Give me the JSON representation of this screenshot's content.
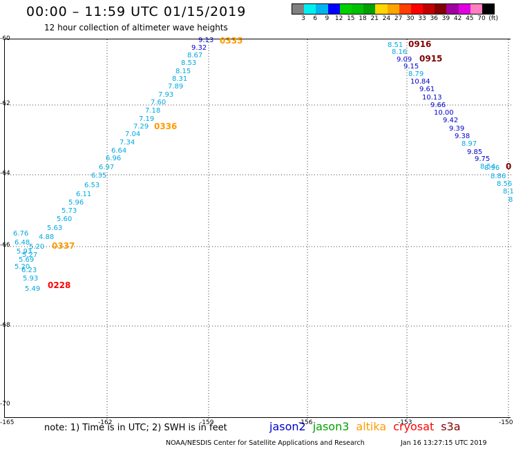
{
  "header": {
    "title": "00:00 – 11:59 UTC 01/15/2019",
    "subtitle": "12 hour collection of altimeter wave heights"
  },
  "color_scale": {
    "colors": [
      "#808080",
      "#00f0f0",
      "#00b4f0",
      "#0000ff",
      "#00d000",
      "#00c000",
      "#00a000",
      "#ffd700",
      "#ffa500",
      "#ff4000",
      "#ff0000",
      "#c00000",
      "#800000",
      "#a000a0",
      "#e000e0",
      "#ff80c0",
      "#000000"
    ],
    "labels": [
      "3",
      "6",
      "9",
      "12",
      "15",
      "18",
      "21",
      "24",
      "27",
      "30",
      "33",
      "36",
      "39",
      "42",
      "45",
      "70",
      "(ft)"
    ]
  },
  "axes": {
    "lat_labels": [
      "-60",
      "-62",
      "-64",
      "-66",
      "-68",
      "-70"
    ],
    "lon_labels": [
      "-165",
      "-162",
      "-159",
      "-156",
      "-153",
      "-150"
    ]
  },
  "footer": {
    "note": "note:  1) Time is in UTC;  2) SWH is in feet",
    "credit": "NOAA/NESDIS Center for Satellite Applications and Research",
    "timestamp": "Jan 16 13:27:15 UTC 2019"
  },
  "satellites": [
    {
      "name": "jason2",
      "color": "#0000cc"
    },
    {
      "name": "jason3",
      "color": "#00a000"
    },
    {
      "name": "altika",
      "color": "#ff9900"
    },
    {
      "name": "cryosat",
      "color": "#ff0000"
    },
    {
      "name": "s3a",
      "color": "#800000"
    }
  ],
  "tracks": [
    {
      "name": "track-west",
      "points": [
        {
          "v": "9.13",
          "c": "#0000cc"
        },
        {
          "v": "9.32",
          "c": "#0000cc"
        },
        {
          "v": "8.67",
          "c": "#00a8e0"
        },
        {
          "v": "8.53",
          "c": "#00a8e0"
        },
        {
          "v": "8.15",
          "c": "#00a8e0"
        },
        {
          "v": "8.31",
          "c": "#00a8e0"
        },
        {
          "v": "7.89",
          "c": "#00a8e0"
        },
        {
          "v": "7.93",
          "c": "#00a8e0"
        },
        {
          "v": "7.60",
          "c": "#00a8e0"
        },
        {
          "v": "7.18",
          "c": "#00a8e0"
        },
        {
          "v": "7.19",
          "c": "#00a8e0"
        },
        {
          "v": "7.29",
          "c": "#00a8e0"
        },
        {
          "v": "7.04",
          "c": "#00a8e0"
        },
        {
          "v": "7.34",
          "c": "#00a8e0"
        },
        {
          "v": "6.64",
          "c": "#00a8e0"
        },
        {
          "v": "6.96",
          "c": "#00a8e0"
        },
        {
          "v": "6.97",
          "c": "#00a8e0"
        },
        {
          "v": "6.35",
          "c": "#00a8e0"
        },
        {
          "v": "6.53",
          "c": "#00a8e0"
        },
        {
          "v": "6.11",
          "c": "#00a8e0"
        },
        {
          "v": "5.96",
          "c": "#00a8e0"
        },
        {
          "v": "5.73",
          "c": "#00a8e0"
        },
        {
          "v": "5.60",
          "c": "#00a8e0"
        },
        {
          "v": "5.63",
          "c": "#00a8e0"
        },
        {
          "v": "4.88",
          "c": "#00a8e0"
        },
        {
          "v": "5.20",
          "c": "#00a8e0"
        },
        {
          "v": "6.76",
          "c": "#00a8e0"
        },
        {
          "v": "6.48",
          "c": "#00a8e0"
        },
        {
          "v": "5.93",
          "c": "#00a8e0"
        },
        {
          "v": "5.27",
          "c": "#00a8e0"
        },
        {
          "v": "5.69",
          "c": "#00a8e0"
        },
        {
          "v": "5.20",
          "c": "#00a8e0"
        },
        {
          "v": "6.23",
          "c": "#00a8e0"
        },
        {
          "v": "5.93",
          "c": "#00a8e0"
        },
        {
          "v": "5.49",
          "c": "#00a8e0"
        }
      ]
    },
    {
      "name": "track-east",
      "points": [
        {
          "v": "8.51",
          "c": "#00a8e0"
        },
        {
          "v": "8.16",
          "c": "#00a8e0"
        },
        {
          "v": "9.09",
          "c": "#0000cc"
        },
        {
          "v": "9.15",
          "c": "#0000cc"
        },
        {
          "v": "8.79",
          "c": "#00a8e0"
        },
        {
          "v": "10.84",
          "c": "#0000cc"
        },
        {
          "v": "9.61",
          "c": "#0000cc"
        },
        {
          "v": "10.13",
          "c": "#0000cc"
        },
        {
          "v": "9.66",
          "c": "#0000cc"
        },
        {
          "v": "10.00",
          "c": "#0000cc"
        },
        {
          "v": "9.42",
          "c": "#0000cc"
        },
        {
          "v": "9.39",
          "c": "#0000cc"
        },
        {
          "v": "9.38",
          "c": "#0000cc"
        },
        {
          "v": "8.97",
          "c": "#00a8e0"
        },
        {
          "v": "9.85",
          "c": "#0000cc"
        },
        {
          "v": "9.75",
          "c": "#0000cc"
        },
        {
          "v": "8.54",
          "c": "#00a8e0"
        },
        {
          "v": "8.96",
          "c": "#00a8e0"
        },
        {
          "v": "8.86",
          "c": "#00a8e0"
        },
        {
          "v": "8.56",
          "c": "#00a8e0"
        },
        {
          "v": "8.1",
          "c": "#00a8e0"
        },
        {
          "v": "8",
          "c": "#00a8e0"
        }
      ]
    }
  ],
  "time_labels": [
    {
      "v": "0335",
      "c": "#ff9900"
    },
    {
      "v": "0336",
      "c": "#ff9900"
    },
    {
      "v": "0337",
      "c": "#ff9900"
    },
    {
      "v": "0228",
      "c": "#ff0000"
    },
    {
      "v": "0916",
      "c": "#800000"
    },
    {
      "v": "0915",
      "c": "#800000"
    },
    {
      "v": "0",
      "c": "#800000"
    }
  ]
}
